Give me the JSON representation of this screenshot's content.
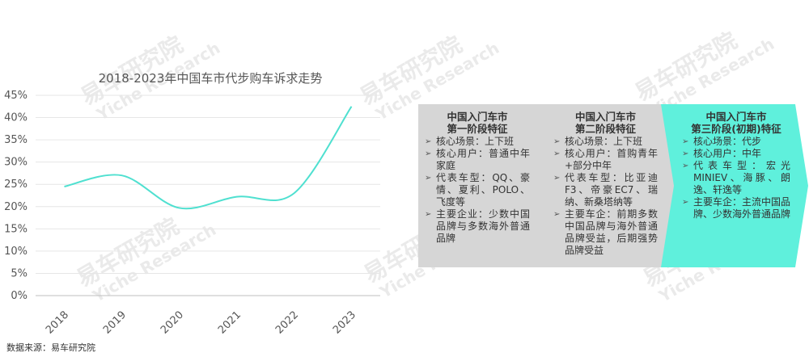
{
  "chart_data": {
    "type": "line",
    "title": "2018-2023年中国车市代步购车诉求走势",
    "categories": [
      "2018",
      "2019",
      "2020",
      "2021",
      "2022",
      "2023"
    ],
    "series": [
      {
        "values": [
          24.5,
          27.0,
          19.7,
          22.2,
          23.0,
          42.5
        ],
        "color": "#4fe0d0"
      }
    ],
    "y_ticks": [
      "0%",
      "5%",
      "10%",
      "15%",
      "20%",
      "25%",
      "30%",
      "35%",
      "40%",
      "45%"
    ],
    "ylim": [
      0,
      45
    ],
    "grid": "horizontal",
    "xlabel": "",
    "ylabel": ""
  },
  "watermark": {
    "cn": "易车研究院",
    "en": "Yiche Research"
  },
  "source": "数据来源：易车研究院",
  "stages": [
    {
      "title_line1": "中国入门车市",
      "title_line2": "第一阶段特征",
      "color": "#d6d6d6",
      "items": [
        "核心场景：上下班",
        "核心用户：普通中年家庭",
        "代表车型：QQ、豪情、夏利、POLO、飞度等",
        "主要企业：少数中国品牌与多数海外普通品牌"
      ]
    },
    {
      "title_line1": "中国入门车市",
      "title_line2": "第二阶段特征",
      "color": "#d6d6d6",
      "items": [
        "核心场景：上下班",
        "核心用户：首购青年+部分中年",
        "代表车型：比亚迪F3、帝豪EC7、瑞纳、新桑塔纳等",
        "主要车企：前期多数中国品牌与海外普通品牌受益，后期强势品牌受益"
      ]
    },
    {
      "title_line1": "中国入门车市",
      "title_line2": "第三阶段(初期)特征",
      "color": "#5ff0dc",
      "items": [
        "核心场景：代步",
        "核心用户：中年",
        "代表车型：宏光MINIEV、海豚、朗逸、轩逸等",
        "主要车企：主流中国品牌、少数海外普通品牌"
      ]
    }
  ]
}
